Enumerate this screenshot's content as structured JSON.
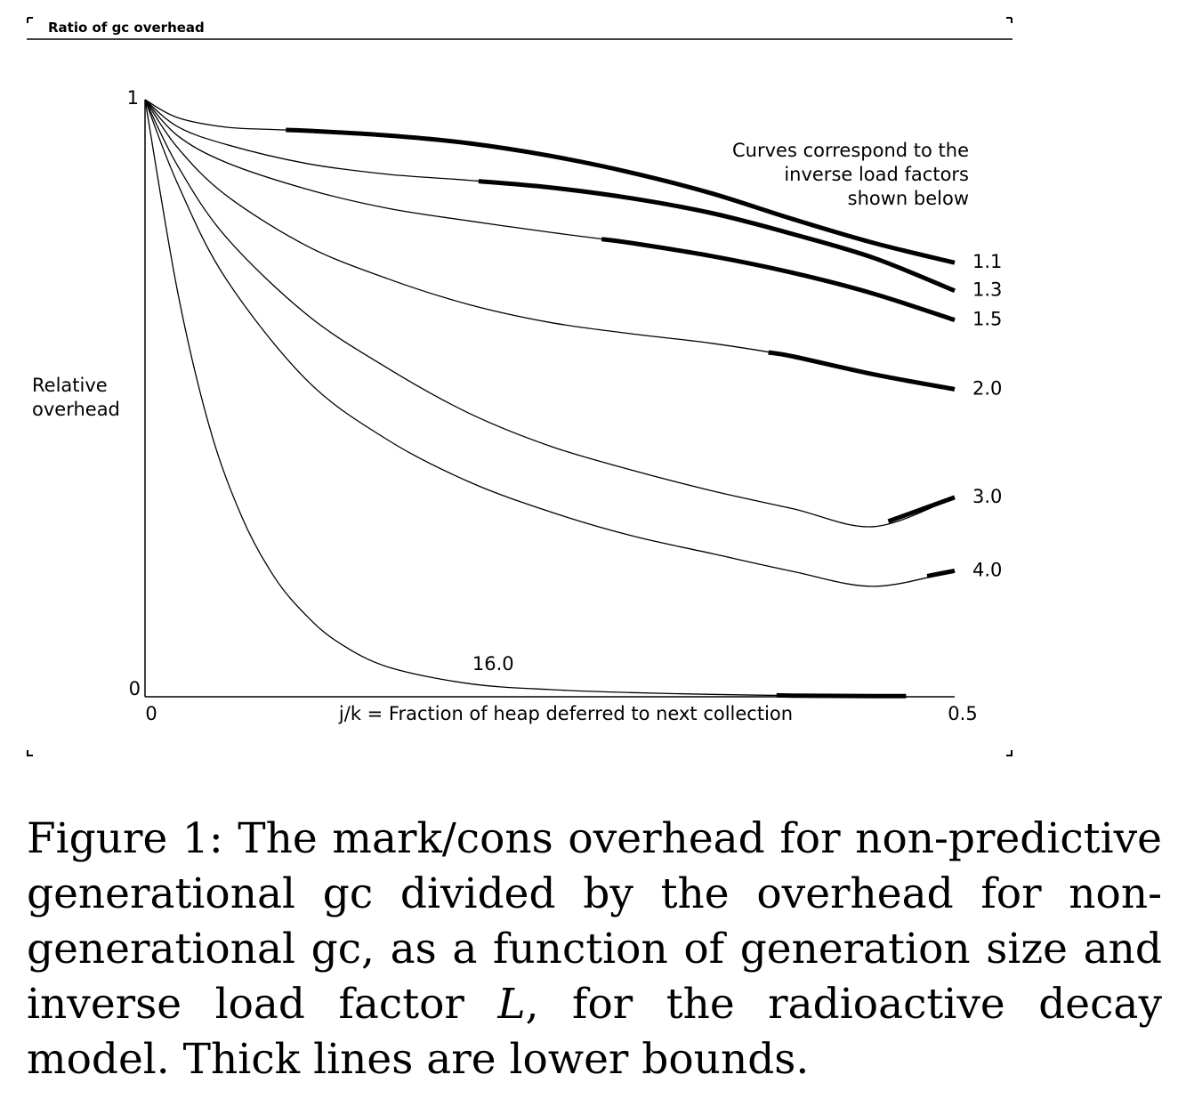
{
  "window_title": "Ratio of gc overhead",
  "chart_data": {
    "type": "line",
    "title": "",
    "xlabel": "j/k = Fraction of heap deferred to next collection",
    "ylabel": "Relative\noverhead",
    "xlim": [
      0,
      0.5
    ],
    "ylim": [
      0,
      1
    ],
    "x_ticks": [
      "0",
      "0.5"
    ],
    "y_ticks": [
      "0",
      "1"
    ],
    "annotation": "Curves correspond to the\ninverse load factors\nshown below",
    "grid": false,
    "legend": "none",
    "series": [
      {
        "name": "1.1",
        "x": [
          0,
          0.02,
          0.05,
          0.08,
          0.1,
          0.15,
          0.2,
          0.25,
          0.3,
          0.35,
          0.4,
          0.45,
          0.5
        ],
        "y": [
          1.0,
          0.97,
          0.954,
          0.95,
          0.948,
          0.94,
          0.927,
          0.906,
          0.878,
          0.843,
          0.8,
          0.76,
          0.727
        ],
        "lower_bound_from": 0.087
      },
      {
        "name": "1.3",
        "x": [
          0,
          0.02,
          0.05,
          0.1,
          0.15,
          0.2,
          0.25,
          0.3,
          0.35,
          0.4,
          0.45,
          0.5
        ],
        "y": [
          1.0,
          0.955,
          0.925,
          0.893,
          0.875,
          0.865,
          0.853,
          0.835,
          0.81,
          0.775,
          0.735,
          0.68
        ],
        "lower_bound_from": 0.206
      },
      {
        "name": "1.5",
        "x": [
          0,
          0.02,
          0.05,
          0.1,
          0.15,
          0.2,
          0.25,
          0.3,
          0.35,
          0.4,
          0.45,
          0.5
        ],
        "y": [
          1.0,
          0.94,
          0.895,
          0.85,
          0.818,
          0.797,
          0.778,
          0.76,
          0.738,
          0.71,
          0.675,
          0.631
        ],
        "lower_bound_from": 0.282
      },
      {
        "name": "2.0",
        "x": [
          0,
          0.02,
          0.05,
          0.1,
          0.15,
          0.2,
          0.25,
          0.3,
          0.35,
          0.4,
          0.45,
          0.5
        ],
        "y": [
          1.0,
          0.92,
          0.84,
          0.755,
          0.7,
          0.657,
          0.627,
          0.608,
          0.592,
          0.57,
          0.54,
          0.515
        ],
        "lower_bound_from": 0.385
      },
      {
        "name": "3.0",
        "x": [
          0,
          0.02,
          0.05,
          0.1,
          0.15,
          0.2,
          0.25,
          0.3,
          0.35,
          0.4,
          0.45,
          0.5
        ],
        "y": [
          1.0,
          0.89,
          0.77,
          0.64,
          0.55,
          0.475,
          0.42,
          0.38,
          0.345,
          0.315,
          0.285,
          0.334
        ],
        "lower_bound_from": 0.459
      },
      {
        "name": "4.0",
        "x": [
          0,
          0.02,
          0.05,
          0.1,
          0.15,
          0.2,
          0.25,
          0.3,
          0.35,
          0.4,
          0.45,
          0.5
        ],
        "y": [
          1.0,
          0.86,
          0.7,
          0.53,
          0.43,
          0.36,
          0.31,
          0.27,
          0.24,
          0.21,
          0.185,
          0.211
        ],
        "lower_bound_from": 0.483
      },
      {
        "name": "16.0",
        "x": [
          0,
          0.02,
          0.04,
          0.06,
          0.08,
          0.1,
          0.12,
          0.15,
          0.2,
          0.25,
          0.3,
          0.35,
          0.4,
          0.45,
          0.47
        ],
        "y": [
          1.0,
          0.68,
          0.45,
          0.3,
          0.2,
          0.135,
          0.09,
          0.05,
          0.022,
          0.012,
          0.007,
          0.004,
          0.002,
          0.001,
          0.001
        ],
        "lower_bound_from": 0.39
      }
    ]
  },
  "caption": {
    "lead": "Figure 1:  The mark/cons overhead for non-predictive generational gc divided by the overhead for non-generational gc, as a function of generation size and inverse load factor ",
    "var": "L",
    "tail": ", for the radioactive decay model. Thick lines are lower bounds."
  }
}
